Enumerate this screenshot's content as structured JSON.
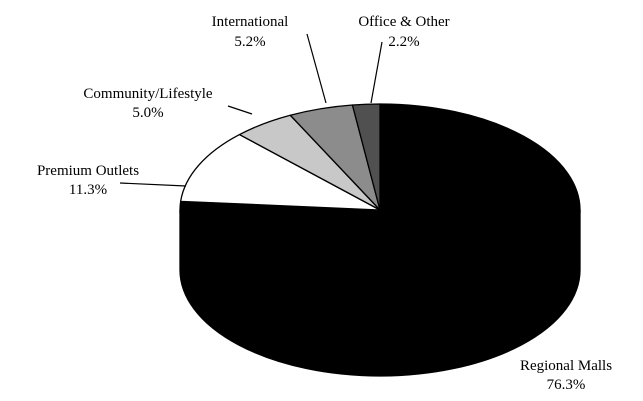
{
  "chart_data": {
    "type": "pie",
    "style": "3d",
    "title": "",
    "series": [
      {
        "label": "Regional Malls",
        "value": 76.3,
        "value_label": "76.3%",
        "color": "#000000"
      },
      {
        "label": "Premium Outlets",
        "value": 11.3,
        "value_label": "11.3%",
        "color": "#ffffff"
      },
      {
        "label": "Community/Lifestyle",
        "value": 5.0,
        "value_label": "5.0%",
        "color": "#c8c8c8"
      },
      {
        "label": "International",
        "value": 5.2,
        "value_label": "5.2%",
        "color": "#8c8c8c"
      },
      {
        "label": "Office & Other",
        "value": 2.2,
        "value_label": "2.2%",
        "color": "#505050"
      }
    ]
  }
}
